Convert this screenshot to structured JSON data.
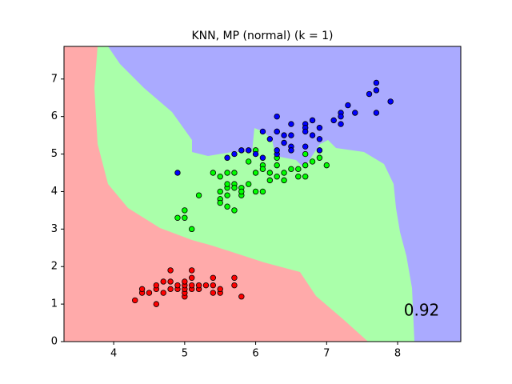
{
  "chart_data": {
    "type": "scatter",
    "title": "KNN, MP (normal) (k = 1)",
    "annotation": "0.92",
    "xlim": [
      3.3,
      8.89
    ],
    "ylim": [
      0,
      7.87
    ],
    "xticks": [
      4,
      5,
      6,
      7,
      8
    ],
    "yticks": [
      0,
      1,
      2,
      3,
      4,
      5,
      6,
      7
    ],
    "series": [
      {
        "color": "#ff0000",
        "x": [
          4.3,
          4.4,
          4.4,
          4.5,
          4.6,
          4.6,
          4.6,
          4.7,
          4.7,
          4.8,
          4.8,
          4.8,
          4.9,
          4.9,
          5.0,
          5.0,
          5.0,
          5.0,
          5.0,
          5.1,
          5.1,
          5.1,
          5.1,
          5.2,
          5.2,
          5.3,
          5.4,
          5.4,
          5.4,
          5.5,
          5.5,
          5.7,
          5.7,
          5.8
        ],
        "values": [
          1.1,
          1.3,
          1.4,
          1.3,
          1.0,
          1.4,
          1.5,
          1.3,
          1.6,
          1.4,
          1.6,
          1.9,
          1.4,
          1.5,
          1.2,
          1.3,
          1.4,
          1.5,
          1.6,
          1.4,
          1.5,
          1.7,
          1.9,
          1.4,
          1.5,
          1.5,
          1.3,
          1.5,
          1.7,
          1.3,
          1.4,
          1.5,
          1.7,
          1.2
        ]
      },
      {
        "color": "#00ff00",
        "x": [
          7.0,
          6.4,
          6.9,
          5.5,
          6.5,
          5.7,
          6.3,
          4.9,
          6.6,
          5.2,
          5.0,
          5.9,
          6.0,
          6.1,
          5.6,
          6.7,
          5.6,
          5.8,
          6.2,
          5.6,
          5.9,
          6.1,
          6.3,
          6.4,
          6.6,
          6.8,
          6.7,
          6.0,
          5.7,
          5.5,
          5.5,
          5.8,
          6.0,
          5.4,
          6.7,
          6.3,
          5.6,
          5.5,
          6.1,
          5.8,
          5.0,
          5.6,
          5.7,
          6.2,
          5.1,
          5.7
        ],
        "values": [
          4.7,
          4.5,
          4.9,
          4.0,
          4.6,
          4.5,
          4.7,
          3.3,
          4.6,
          3.9,
          3.5,
          4.2,
          4.0,
          4.7,
          3.6,
          4.4,
          4.5,
          4.1,
          4.5,
          3.9,
          4.8,
          4.0,
          4.9,
          4.3,
          4.4,
          4.8,
          5.0,
          4.5,
          3.5,
          3.8,
          3.7,
          3.9,
          5.1,
          4.5,
          4.7,
          4.4,
          4.1,
          4.4,
          4.6,
          4.0,
          3.3,
          4.2,
          4.2,
          4.3,
          3.0,
          4.1
        ]
      },
      {
        "color": "#0000ff",
        "x": [
          6.3,
          5.8,
          7.1,
          6.3,
          6.5,
          7.6,
          4.9,
          7.3,
          6.7,
          7.2,
          6.4,
          6.8,
          5.7,
          6.4,
          7.7,
          7.7,
          6.0,
          6.9,
          5.6,
          6.7,
          7.2,
          6.1,
          7.2,
          7.4,
          7.9,
          6.1,
          7.7,
          6.3,
          6.9,
          6.7,
          6.9,
          6.8,
          6.7,
          6.3,
          6.5,
          6.2,
          5.9,
          6.5,
          6.3,
          6.5
        ],
        "values": [
          6.0,
          5.1,
          5.9,
          5.6,
          5.8,
          6.6,
          4.5,
          6.3,
          5.8,
          6.1,
          5.3,
          5.5,
          5.0,
          5.5,
          6.7,
          6.9,
          5.0,
          5.7,
          4.9,
          5.7,
          6.0,
          4.9,
          5.8,
          6.1,
          6.4,
          5.6,
          6.1,
          5.6,
          5.4,
          5.6,
          5.1,
          5.9,
          5.2,
          5.0,
          5.2,
          5.4,
          5.1,
          5.1,
          5.1,
          5.5
        ]
      }
    ]
  }
}
